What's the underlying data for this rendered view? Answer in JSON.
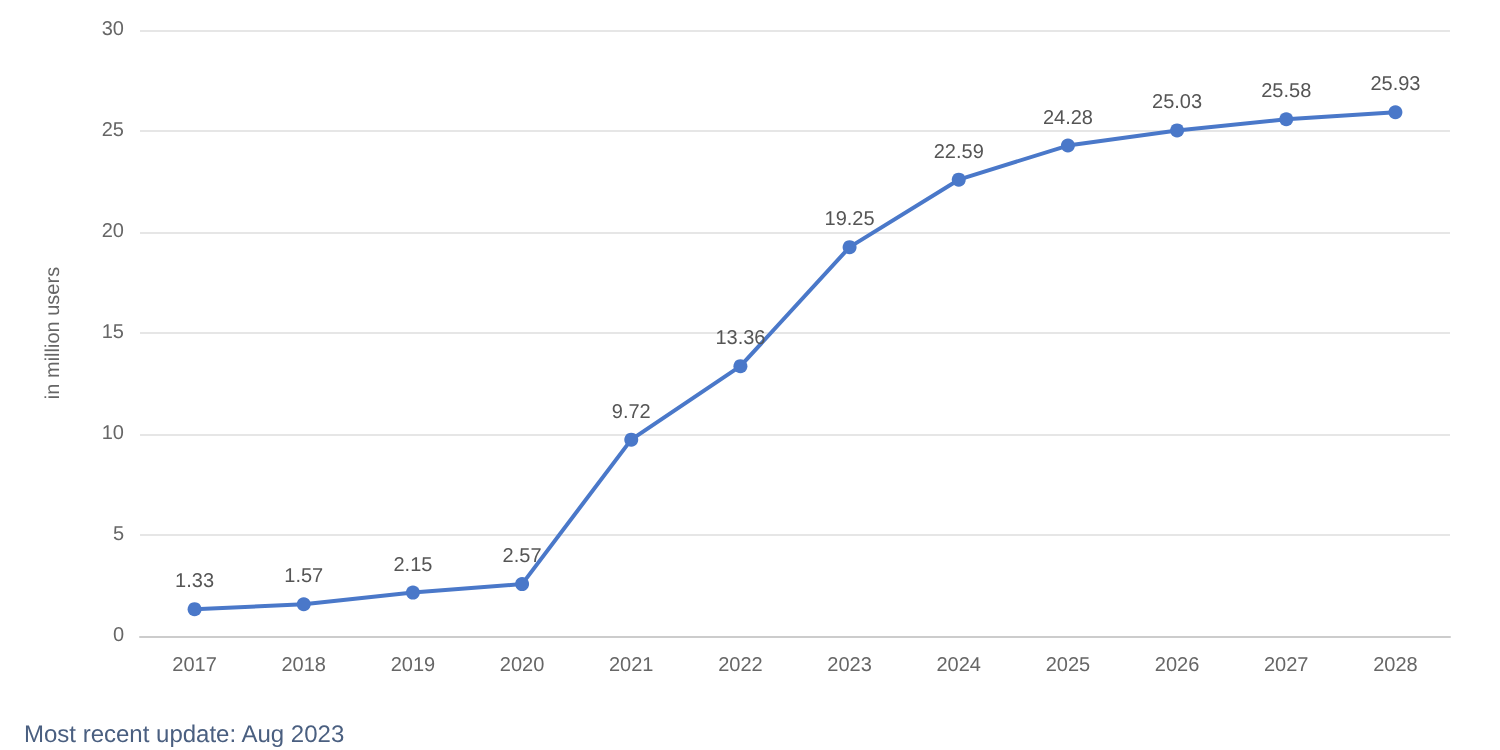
{
  "chart_data": {
    "type": "line",
    "ylabel": "in million users",
    "categories": [
      "2017",
      "2018",
      "2019",
      "2020",
      "2021",
      "2022",
      "2023",
      "2024",
      "2025",
      "2026",
      "2027",
      "2028"
    ],
    "series": [
      {
        "color": "#4a78c9",
        "values": [
          1.33,
          1.57,
          2.15,
          2.57,
          9.72,
          13.36,
          19.25,
          22.59,
          24.28,
          25.03,
          25.58,
          25.93
        ]
      }
    ],
    "ylim": [
      0,
      30
    ],
    "yticks": [
      0,
      5,
      10,
      15,
      20,
      25,
      30
    ],
    "grid": "y",
    "marker": "circle",
    "line_style": "solid",
    "data_labels": true,
    "annotations": [
      "Most recent update: Aug 2023"
    ]
  }
}
